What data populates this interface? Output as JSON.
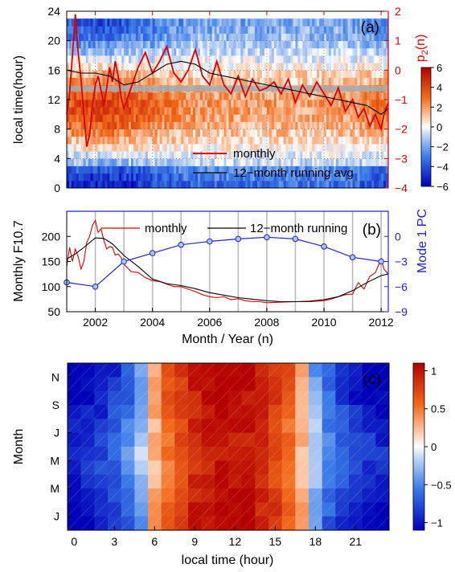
{
  "chart_data": [
    {
      "type": "heatmap",
      "panel_label": "(a)",
      "ylabel": "local time(hour)",
      "y_ticks": [
        0,
        4,
        8,
        12,
        16,
        20,
        24
      ],
      "ylim": [
        0,
        24
      ],
      "y2label": "p",
      "y2label_sub": "2",
      "y2label_tail": "(n)",
      "y2_ticks": [
        2,
        1,
        0,
        -1,
        -2,
        -3,
        -4
      ],
      "y2lim": [
        -4,
        2
      ],
      "colorbar_ticks": [
        6,
        4,
        2,
        0,
        -2,
        -4,
        -6
      ],
      "colorbar_range": [
        -6,
        6
      ],
      "xlim": [
        2001,
        2012.25
      ],
      "legend": [
        {
          "label": "monthly",
          "color": "#dd0000"
        },
        {
          "label": "12−month running avg",
          "color": "#000000"
        }
      ],
      "series": [
        {
          "name": "monthly",
          "color": "#dd0000",
          "x": [
            2001.0,
            2001.1,
            2001.2,
            2001.3,
            2001.4,
            2001.5,
            2001.6,
            2001.7,
            2001.8,
            2001.9,
            2002.0,
            2002.1,
            2002.2,
            2002.3,
            2002.4,
            2002.5,
            2002.6,
            2002.7,
            2002.8,
            2002.9,
            2003.0,
            2003.25,
            2003.5,
            2003.75,
            2004.0,
            2004.25,
            2004.5,
            2004.75,
            2005.0,
            2005.25,
            2005.5,
            2005.75,
            2006.0,
            2006.25,
            2006.5,
            2006.75,
            2007.0,
            2007.25,
            2007.5,
            2007.75,
            2008.0,
            2008.25,
            2008.5,
            2008.75,
            2009.0,
            2009.25,
            2009.5,
            2009.75,
            2010.0,
            2010.25,
            2010.5,
            2010.75,
            2011.0,
            2011.2,
            2011.4,
            2011.6,
            2011.8,
            2012.0,
            2012.1,
            2012.25
          ],
          "y": [
            -1.5,
            -0.8,
            0.5,
            1.9,
            0.6,
            -0.3,
            -1.5,
            -2.6,
            -2.2,
            -1.2,
            -0.5,
            -0.2,
            -0.7,
            -1.2,
            -0.6,
            0.1,
            -0.4,
            0.3,
            -0.2,
            -0.9,
            -1.3,
            -0.6,
            0.1,
            0.6,
            -0.1,
            0.3,
            0.8,
            -0.1,
            -0.4,
            0.0,
            0.7,
            -0.2,
            -0.5,
            0.3,
            -0.5,
            -0.8,
            -0.2,
            -0.9,
            -0.3,
            -0.7,
            -0.6,
            -0.4,
            -0.8,
            -0.3,
            -1.1,
            -0.5,
            -0.9,
            -0.4,
            -0.8,
            -1.2,
            -0.6,
            -1.4,
            -1.0,
            -1.6,
            -1.3,
            -1.9,
            -1.5,
            -2.0,
            -1.5,
            -1.1
          ]
        },
        {
          "name": "12−month running avg",
          "color": "#000000",
          "x": [
            2001.0,
            2001.5,
            2002.0,
            2002.5,
            2003.0,
            2003.5,
            2004.0,
            2004.5,
            2005.0,
            2005.5,
            2006.0,
            2006.5,
            2007.0,
            2007.5,
            2008.0,
            2008.5,
            2009.0,
            2009.5,
            2010.0,
            2010.5,
            2011.0,
            2011.5,
            2012.0,
            2012.25
          ],
          "y": [
            0.0,
            -0.1,
            -0.1,
            -0.2,
            -0.5,
            -0.4,
            -0.1,
            0.2,
            0.3,
            0.2,
            -0.1,
            -0.2,
            -0.3,
            -0.4,
            -0.5,
            -0.6,
            -0.7,
            -0.8,
            -0.9,
            -1.0,
            -1.1,
            -1.2,
            -1.5,
            -1.3
          ]
        }
      ]
    },
    {
      "type": "line",
      "panel_label": "(b)",
      "xlabel": "Month / Year (n)",
      "ylabel": "Monthly F10.7",
      "y_ticks": [
        50,
        100,
        150,
        200
      ],
      "ylim": [
        50,
        250
      ],
      "y2label": "Mode 1 PC",
      "y2_ticks": [
        0,
        -3,
        -6,
        -9
      ],
      "y2lim": [
        -9,
        3
      ],
      "x_ticks": [
        2002,
        2004,
        2006,
        2008,
        2010,
        2012
      ],
      "xlim": [
        2001,
        2012.25
      ],
      "legend": [
        {
          "label": "monthly",
          "color": "#dd0000"
        },
        {
          "label": "12−month running",
          "color": "#000000"
        }
      ],
      "series": [
        {
          "name": "monthly",
          "color": "#dd0000",
          "x": [
            2001.0,
            2001.1,
            2001.2,
            2001.3,
            2001.4,
            2001.5,
            2001.6,
            2001.7,
            2001.8,
            2001.9,
            2002.0,
            2002.1,
            2002.2,
            2002.3,
            2002.4,
            2002.5,
            2002.6,
            2002.7,
            2002.8,
            2002.9,
            2003.0,
            2003.25,
            2003.5,
            2003.75,
            2004.0,
            2004.25,
            2004.5,
            2004.75,
            2005.0,
            2005.25,
            2005.5,
            2005.75,
            2006.0,
            2006.25,
            2006.5,
            2006.75,
            2007.0,
            2007.25,
            2007.5,
            2007.75,
            2008.0,
            2008.5,
            2009.0,
            2009.5,
            2010.0,
            2010.25,
            2010.5,
            2010.75,
            2011.0,
            2011.2,
            2011.4,
            2011.6,
            2011.8,
            2011.9,
            2012.0,
            2012.1,
            2012.25
          ],
          "y": [
            140,
            178,
            150,
            175,
            160,
            135,
            150,
            188,
            200,
            222,
            232,
            208,
            215,
            192,
            175,
            180,
            178,
            163,
            165,
            158,
            145,
            130,
            128,
            118,
            112,
            110,
            105,
            100,
            100,
            95,
            90,
            84,
            80,
            78,
            80,
            74,
            76,
            72,
            70,
            70,
            68,
            69,
            70,
            70,
            72,
            75,
            80,
            84,
            85,
            108,
            95,
            120,
            128,
            142,
            155,
            135,
            125
          ]
        },
        {
          "name": "12−month running",
          "color": "#000000",
          "x": [
            2001.0,
            2001.3,
            2001.6,
            2002.0,
            2002.3,
            2002.6,
            2003.0,
            2003.5,
            2004.0,
            2004.5,
            2005.0,
            2005.5,
            2006.0,
            2006.5,
            2007.0,
            2007.5,
            2008.0,
            2008.5,
            2009.0,
            2009.5,
            2010.0,
            2010.5,
            2011.0,
            2011.5,
            2012.0,
            2012.25
          ],
          "y": [
            155,
            165,
            178,
            197,
            196,
            185,
            162,
            140,
            115,
            106,
            102,
            96,
            88,
            83,
            78,
            75,
            72,
            70,
            70,
            71,
            74,
            80,
            92,
            108,
            122,
            125
          ]
        },
        {
          "name": "Mode 1 PC",
          "color": "#2222cc",
          "axis": "y2",
          "x": [
            2001,
            2002,
            2003,
            2004,
            2005,
            2006,
            2007,
            2008,
            2009,
            2010,
            2011,
            2012
          ],
          "y": [
            -5.5,
            -6.0,
            -3.0,
            -2.0,
            -1.0,
            -0.6,
            -0.3,
            -0.1,
            -0.3,
            -1.2,
            -2.5,
            -3.0
          ]
        }
      ]
    },
    {
      "type": "heatmap",
      "panel_label": "(c)",
      "xlabel": "local time (hour)",
      "ylabel": "Month",
      "x_ticks": [
        0,
        3,
        6,
        9,
        12,
        15,
        18,
        21
      ],
      "xlim": [
        -0.5,
        23.5
      ],
      "y_tick_labels": [
        "J",
        "M",
        "M",
        "J",
        "S",
        "N"
      ],
      "colorbar_ticks": [
        1,
        0.5,
        0,
        -0.5,
        -1
      ],
      "colorbar_range": [
        -1.1,
        1.1
      ],
      "rows": 12,
      "cols": 24
    }
  ]
}
